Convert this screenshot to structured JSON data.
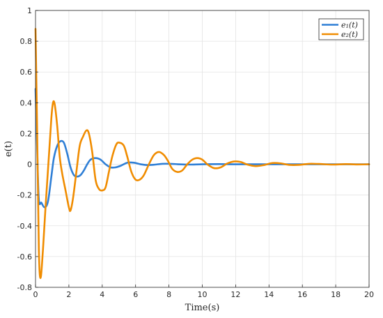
{
  "chart_data": {
    "type": "line",
    "title": "",
    "xlabel": "Time(s)",
    "ylabel": "e(t)",
    "xlim": [
      0,
      20
    ],
    "ylim": [
      -0.8,
      1
    ],
    "xticks": [
      0,
      2,
      4,
      6,
      8,
      10,
      12,
      14,
      16,
      18,
      20
    ],
    "xtick_labels": [
      "0",
      "2",
      "4",
      "6",
      "8",
      "10",
      "12",
      "14",
      "16",
      "18",
      "20"
    ],
    "yticks": [
      -0.8,
      -0.6,
      -0.4,
      -0.2,
      0,
      0.2,
      0.4,
      0.6,
      0.8,
      1
    ],
    "ytick_labels": [
      "-0.8",
      "-0.6",
      "-0.4",
      "-0.2",
      "0",
      "0.2",
      "0.4",
      "0.6",
      "0.8",
      "1"
    ],
    "grid": true,
    "legend_position": "top-right",
    "series": [
      {
        "name": "e₁(t)",
        "color": "#2f7fd6",
        "points": [
          [
            0,
            0.49
          ],
          [
            0.1,
            0.1
          ],
          [
            0.2,
            -0.23
          ],
          [
            0.35,
            -0.25
          ],
          [
            0.55,
            -0.28
          ],
          [
            0.75,
            -0.24
          ],
          [
            0.95,
            -0.08
          ],
          [
            1.1,
            0.04
          ],
          [
            1.3,
            0.12
          ],
          [
            1.5,
            0.15
          ],
          [
            1.7,
            0.14
          ],
          [
            1.9,
            0.07
          ],
          [
            2.1,
            -0.02
          ],
          [
            2.3,
            -0.07
          ],
          [
            2.5,
            -0.08
          ],
          [
            2.7,
            -0.07
          ],
          [
            2.9,
            -0.04
          ],
          [
            3.1,
            0.0
          ],
          [
            3.3,
            0.03
          ],
          [
            3.6,
            0.04
          ],
          [
            3.9,
            0.03
          ],
          [
            4.2,
            0.0
          ],
          [
            4.5,
            -0.02
          ],
          [
            4.8,
            -0.02
          ],
          [
            5.1,
            -0.01
          ],
          [
            5.5,
            0.01
          ],
          [
            5.9,
            0.01
          ],
          [
            6.3,
            0.0
          ],
          [
            6.7,
            -0.005
          ],
          [
            7.1,
            -0.003
          ],
          [
            7.6,
            0.003
          ],
          [
            8.1,
            0.003
          ],
          [
            8.6,
            0.0
          ],
          [
            9.2,
            -0.002
          ],
          [
            10,
            0.0
          ],
          [
            11,
            0.001
          ],
          [
            12,
            0.0
          ],
          [
            14,
            0.0
          ],
          [
            16,
            0.0
          ],
          [
            18,
            0.0
          ],
          [
            20,
            0.0
          ]
        ]
      },
      {
        "name": "e₂(t)",
        "color": "#f08c00",
        "points": [
          [
            0,
            0.88
          ],
          [
            0.1,
            0.2
          ],
          [
            0.2,
            -0.55
          ],
          [
            0.3,
            -0.74
          ],
          [
            0.45,
            -0.55
          ],
          [
            0.6,
            -0.28
          ],
          [
            0.8,
            0.05
          ],
          [
            0.95,
            0.3
          ],
          [
            1.05,
            0.4
          ],
          [
            1.15,
            0.39
          ],
          [
            1.3,
            0.25
          ],
          [
            1.45,
            0.05
          ],
          [
            1.6,
            -0.06
          ],
          [
            1.8,
            -0.17
          ],
          [
            2.0,
            -0.28
          ],
          [
            2.1,
            -0.3
          ],
          [
            2.25,
            -0.22
          ],
          [
            2.45,
            -0.05
          ],
          [
            2.65,
            0.12
          ],
          [
            2.85,
            0.18
          ],
          [
            3.05,
            0.22
          ],
          [
            3.2,
            0.2
          ],
          [
            3.4,
            0.08
          ],
          [
            3.6,
            -0.1
          ],
          [
            3.8,
            -0.16
          ],
          [
            4.0,
            -0.17
          ],
          [
            4.2,
            -0.15
          ],
          [
            4.4,
            -0.05
          ],
          [
            4.6,
            0.05
          ],
          [
            4.85,
            0.13
          ],
          [
            5.05,
            0.14
          ],
          [
            5.3,
            0.12
          ],
          [
            5.5,
            0.05
          ],
          [
            5.75,
            -0.05
          ],
          [
            6.0,
            -0.1
          ],
          [
            6.25,
            -0.1
          ],
          [
            6.5,
            -0.07
          ],
          [
            6.8,
            0.0
          ],
          [
            7.1,
            0.06
          ],
          [
            7.4,
            0.08
          ],
          [
            7.7,
            0.06
          ],
          [
            7.95,
            0.02
          ],
          [
            8.2,
            -0.03
          ],
          [
            8.5,
            -0.05
          ],
          [
            8.8,
            -0.04
          ],
          [
            9.1,
            0.0
          ],
          [
            9.4,
            0.03
          ],
          [
            9.7,
            0.04
          ],
          [
            10.0,
            0.03
          ],
          [
            10.3,
            0.0
          ],
          [
            10.7,
            -0.025
          ],
          [
            11.1,
            -0.02
          ],
          [
            11.5,
            0.005
          ],
          [
            11.9,
            0.018
          ],
          [
            12.3,
            0.015
          ],
          [
            12.7,
            -0.002
          ],
          [
            13.2,
            -0.012
          ],
          [
            13.7,
            -0.005
          ],
          [
            14.2,
            0.008
          ],
          [
            14.7,
            0.006
          ],
          [
            15.2,
            -0.004
          ],
          [
            15.8,
            -0.004
          ],
          [
            16.4,
            0.003
          ],
          [
            17.0,
            0.002
          ],
          [
            17.8,
            -0.002
          ],
          [
            18.6,
            0.001
          ],
          [
            19.3,
            -0.001
          ],
          [
            20,
            0.0
          ]
        ]
      }
    ]
  }
}
